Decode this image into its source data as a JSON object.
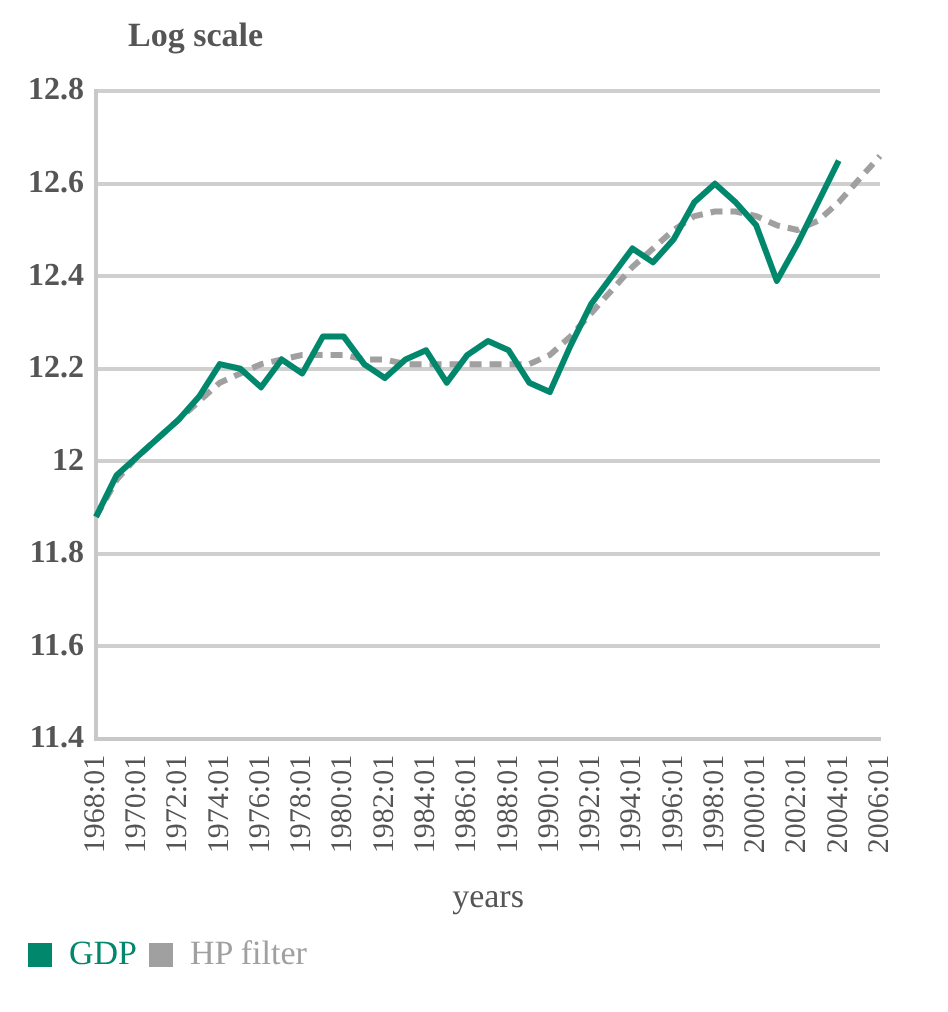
{
  "chart_data": {
    "type": "line",
    "ylabel": "Log scale",
    "xlabel": "years",
    "categories": [
      "1968:01",
      null,
      "1970:01",
      null,
      "1972:01",
      null,
      "1974:01",
      null,
      "1976:01",
      null,
      "1978:01",
      null,
      "1980:01",
      null,
      "1982:01",
      null,
      "1984:01",
      null,
      "1986:01",
      null,
      "1988:01",
      null,
      "1990:01",
      null,
      "1992:01",
      null,
      "1994:01",
      null,
      "1996:01",
      null,
      "1998:01",
      null,
      "2000:01",
      null,
      "2002:01",
      null,
      "2004:01",
      null,
      "2006:01"
    ],
    "series": [
      {
        "name": "GDP",
        "color": "#00876c",
        "line_style": "solid",
        "values": [
          11.88,
          11.97,
          12.01,
          12.05,
          12.09,
          12.14,
          12.21,
          12.2,
          12.16,
          12.22,
          12.19,
          12.27,
          12.27,
          12.21,
          12.18,
          12.22,
          12.24,
          12.17,
          12.23,
          12.26,
          12.24,
          12.17,
          12.15,
          12.25,
          12.34,
          12.4,
          12.46,
          12.43,
          12.48,
          12.56,
          12.6,
          12.56,
          12.51,
          12.39,
          12.47,
          12.56,
          12.65,
          null,
          null
        ]
      },
      {
        "name": "HP filter",
        "color": "#a0a0a0",
        "line_style": "dashed",
        "values": [
          11.88,
          11.96,
          12.01,
          12.05,
          12.09,
          12.13,
          12.17,
          12.19,
          12.21,
          12.22,
          12.23,
          12.23,
          12.23,
          12.22,
          12.22,
          12.21,
          12.21,
          12.21,
          12.21,
          12.21,
          12.21,
          12.21,
          12.23,
          12.27,
          12.32,
          12.37,
          12.42,
          12.46,
          12.5,
          12.53,
          12.54,
          12.54,
          12.53,
          12.51,
          12.5,
          12.52,
          12.56,
          12.61,
          12.66
        ]
      }
    ],
    "ylim": [
      11.4,
      12.8
    ],
    "yticks": [
      11.4,
      11.6,
      11.8,
      {
        "value": 12,
        "label": "12"
      },
      12.2,
      12.4,
      12.6,
      12.8
    ],
    "grid": "y",
    "legend": "bottom left",
    "marker": "none"
  }
}
